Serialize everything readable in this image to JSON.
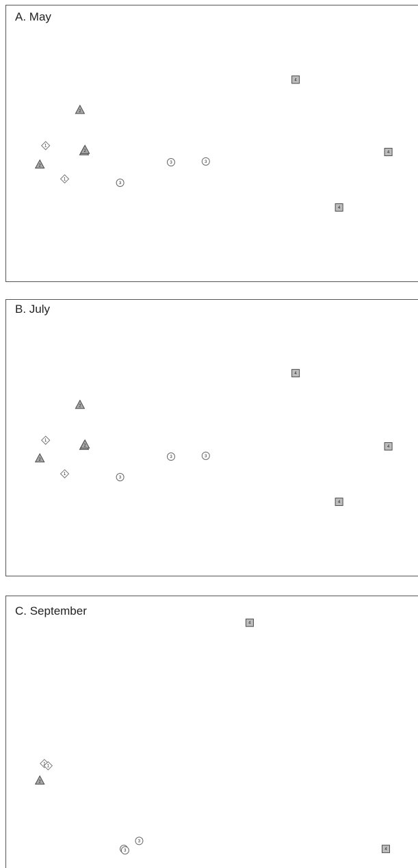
{
  "chart_data": [
    {
      "type": "scatter",
      "title": "A. May",
      "xlabel": "",
      "ylabel": "",
      "xlim": [
        0,
        100
      ],
      "ylim": [
        0,
        100
      ],
      "grid": false,
      "legend": "none",
      "points": [
        {
          "x": 70.1,
          "y": 73.0,
          "group": "4"
        },
        {
          "x": 18.0,
          "y": 62.0,
          "group": "2"
        },
        {
          "x": 9.7,
          "y": 49.2,
          "group": "1"
        },
        {
          "x": 19.0,
          "y": 47.1,
          "group": "2"
        },
        {
          "x": 19.2,
          "y": 47.6,
          "group": "2"
        },
        {
          "x": 92.5,
          "y": 46.9,
          "group": "4"
        },
        {
          "x": 8.3,
          "y": 42.3,
          "group": "2"
        },
        {
          "x": 40.0,
          "y": 43.2,
          "group": "3"
        },
        {
          "x": 48.4,
          "y": 43.5,
          "group": "3"
        },
        {
          "x": 14.3,
          "y": 37.2,
          "group": "1"
        },
        {
          "x": 27.7,
          "y": 35.8,
          "group": "3"
        },
        {
          "x": 80.6,
          "y": 26.9,
          "group": "4"
        }
      ]
    },
    {
      "type": "scatter",
      "title": "B. July",
      "xlabel": "",
      "ylabel": "",
      "xlim": [
        0,
        100
      ],
      "ylim": [
        0,
        100
      ],
      "grid": false,
      "legend": "none",
      "points": [
        {
          "x": 70.1,
          "y": 73.3,
          "group": "4"
        },
        {
          "x": 18.0,
          "y": 61.8,
          "group": "2"
        },
        {
          "x": 9.7,
          "y": 49.1,
          "group": "1"
        },
        {
          "x": 19.0,
          "y": 47.0,
          "group": "2"
        },
        {
          "x": 19.2,
          "y": 47.5,
          "group": "2"
        },
        {
          "x": 92.5,
          "y": 46.9,
          "group": "4"
        },
        {
          "x": 8.3,
          "y": 42.5,
          "group": "2"
        },
        {
          "x": 40.0,
          "y": 43.2,
          "group": "3"
        },
        {
          "x": 48.4,
          "y": 43.5,
          "group": "3"
        },
        {
          "x": 14.3,
          "y": 37.0,
          "group": "1"
        },
        {
          "x": 27.7,
          "y": 35.8,
          "group": "3"
        },
        {
          "x": 80.6,
          "y": 26.9,
          "group": "4"
        }
      ]
    },
    {
      "type": "scatter",
      "title": "C. September",
      "xlabel": "",
      "ylabel": "",
      "xlim": [
        0,
        100
      ],
      "ylim": [
        0,
        100
      ],
      "grid": false,
      "legend": "none",
      "points": [
        {
          "x": 59.0,
          "y": 90.2,
          "group": "4"
        },
        {
          "x": 9.4,
          "y": 39.4,
          "group": "1"
        },
        {
          "x": 10.3,
          "y": 38.6,
          "group": "1"
        },
        {
          "x": 8.3,
          "y": 33.2,
          "group": "2"
        },
        {
          "x": 32.3,
          "y": 11.5,
          "group": "3"
        },
        {
          "x": 28.6,
          "y": 8.6,
          "group": "3"
        },
        {
          "x": 28.9,
          "y": 8.1,
          "group": "3"
        },
        {
          "x": 91.9,
          "y": 8.6,
          "group": "4"
        }
      ]
    }
  ],
  "styles": {
    "frame_color": "#555555",
    "groups": {
      "1": {
        "shape": "diamond-icon",
        "fill": "#ffffff",
        "stroke": "#777777"
      },
      "2": {
        "shape": "triangle-icon",
        "fill": "#a9a9a9",
        "stroke": "#4a4a4a"
      },
      "3": {
        "shape": "circle-icon",
        "fill": "#ffffff",
        "stroke": "#666666"
      },
      "4": {
        "shape": "square-icon",
        "fill": "#bdbdbd",
        "stroke": "#4a4a4a"
      }
    }
  }
}
